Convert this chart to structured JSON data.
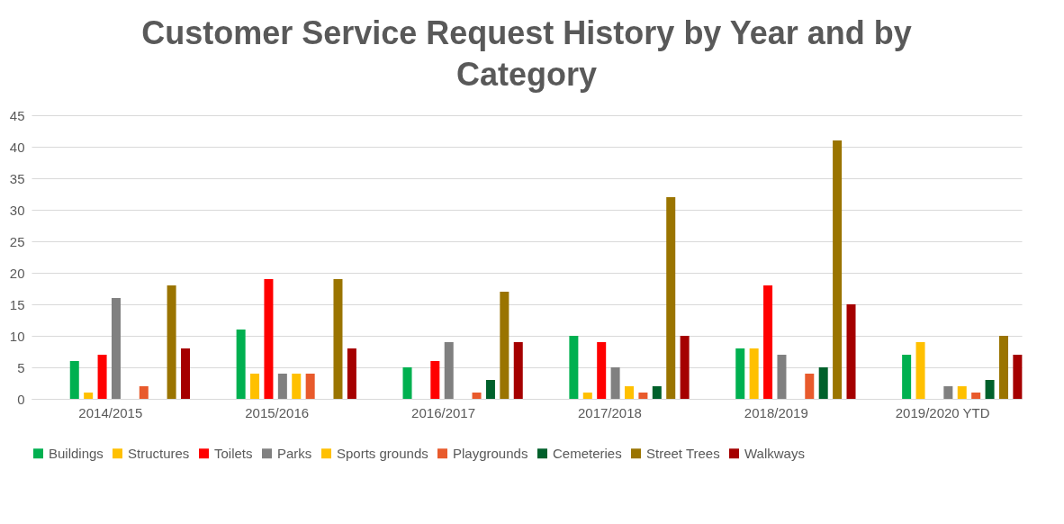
{
  "chart_data": {
    "type": "bar",
    "title": "Customer Service Request History by Year and by Category",
    "categories": [
      "2014/2015",
      "2015/2016",
      "2016/2017",
      "2017/2018",
      "2018/2019",
      "2019/2020 YTD"
    ],
    "series": [
      {
        "name": "Buildings",
        "color": "#00b050",
        "values": [
          6,
          11,
          5,
          10,
          8,
          7
        ]
      },
      {
        "name": "Structures",
        "color": "#ffc000",
        "values": [
          1,
          4,
          0,
          1,
          8,
          9
        ]
      },
      {
        "name": "Toilets",
        "color": "#ff0000",
        "values": [
          7,
          19,
          6,
          9,
          18,
          0
        ]
      },
      {
        "name": "Parks",
        "color": "#808080",
        "values": [
          16,
          4,
          9,
          5,
          7,
          2
        ]
      },
      {
        "name": "Sports grounds",
        "color": "#ffc000",
        "values": [
          0,
          4,
          0,
          2,
          0,
          2
        ]
      },
      {
        "name": "Playgrounds",
        "color": "#e85a2c",
        "values": [
          2,
          4,
          1,
          1,
          4,
          1
        ]
      },
      {
        "name": "Cemeteries",
        "color": "#00602b",
        "values": [
          0,
          0,
          3,
          2,
          5,
          3
        ]
      },
      {
        "name": "Street Trees",
        "color": "#9a7400",
        "values": [
          18,
          19,
          17,
          32,
          41,
          10
        ]
      },
      {
        "name": "Walkways",
        "color": "#a50000",
        "values": [
          8,
          8,
          9,
          10,
          15,
          7
        ]
      }
    ],
    "ylim": [
      0,
      45
    ],
    "yticks": [
      0,
      5,
      10,
      15,
      20,
      25,
      30,
      35,
      40,
      45
    ],
    "grid": "y",
    "legend": "bottom"
  }
}
